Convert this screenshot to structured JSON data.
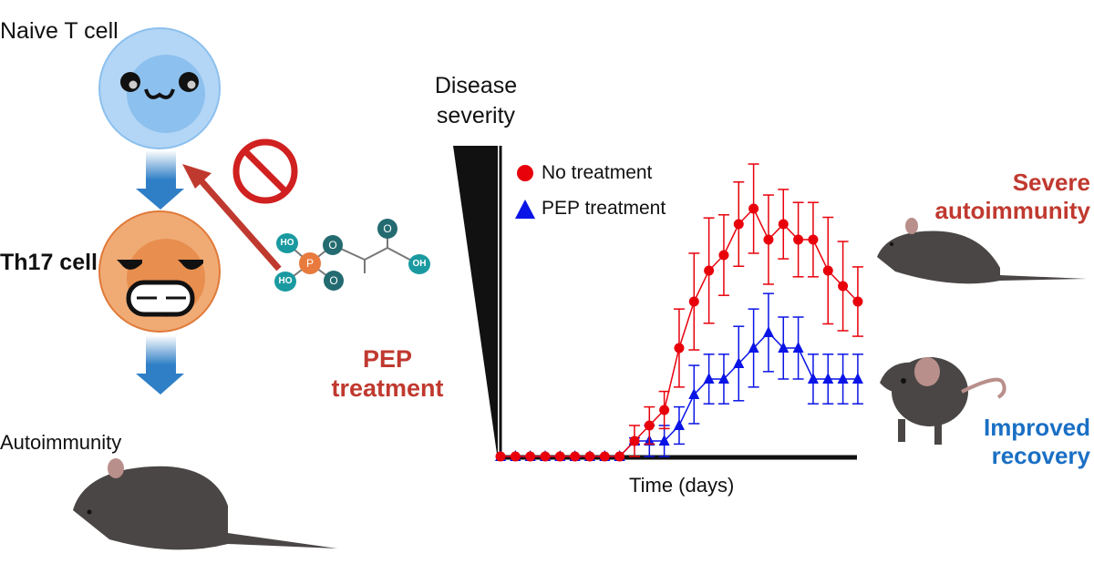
{
  "left": {
    "naive_label": "Naive T cell",
    "th17_label": "Th17 cell",
    "autoimmunity_label": "Autoimmunity",
    "pep_label_line1": "PEP",
    "pep_label_line2": "treatment",
    "molecule_atoms": [
      "HO",
      "HO",
      "P",
      "O",
      "O",
      "O",
      "OH"
    ]
  },
  "right": {
    "severe_line1": "Severe",
    "severe_line2": "autoimmunity",
    "improved_line1": "Improved",
    "improved_line2": "recovery"
  },
  "colors": {
    "red_series": "#e8000b",
    "blue_series": "#0a14e6",
    "pep_red": "#c0392f",
    "recovery_blue": "#1a6fc4",
    "arrow_blue": "#2f7fc6"
  },
  "chart_data": {
    "type": "line",
    "ylabel": "Disease severity",
    "xlabel": "Time (days)",
    "legend_placement": "top-left",
    "grid": false,
    "x": [
      1,
      2,
      3,
      4,
      5,
      6,
      7,
      8,
      9,
      10,
      11,
      12,
      13,
      14,
      15,
      16,
      17,
      18,
      19,
      20,
      21,
      22,
      23,
      24,
      25
    ],
    "ylim": [
      0,
      4.7
    ],
    "series": [
      {
        "name": "No treatment",
        "marker": "circle",
        "color": "#e8000b",
        "values": [
          0,
          0,
          0,
          0,
          0,
          0,
          0,
          0,
          0,
          0.25,
          0.5,
          0.75,
          1.75,
          2.5,
          3,
          3.25,
          3.75,
          4,
          3.5,
          3.75,
          3.5,
          3.5,
          3,
          2.75,
          2.5
        ],
        "error": [
          0,
          0,
          0,
          0,
          0,
          0,
          0,
          0,
          0,
          0.25,
          0.3,
          0.3,
          0.63,
          0.78,
          0.85,
          0.65,
          0.68,
          0.72,
          0.72,
          0.56,
          0.6,
          0.6,
          0.86,
          0.72,
          0.56
        ]
      },
      {
        "name": "PEP treatment",
        "marker": "triangle",
        "color": "#0a14e6",
        "values": [
          0,
          0,
          0,
          0,
          0,
          0,
          0,
          0,
          0,
          0.25,
          0.25,
          0.25,
          0.5,
          1,
          1.25,
          1.25,
          1.5,
          1.75,
          2,
          1.75,
          1.75,
          1.25,
          1.25,
          1.25,
          1.25
        ],
        "error": [
          0,
          0,
          0,
          0,
          0,
          0,
          0,
          0,
          0,
          0.05,
          0.25,
          0.25,
          0.3,
          0.47,
          0.4,
          0.4,
          0.6,
          0.63,
          0.63,
          0.5,
          0.5,
          0.4,
          0.4,
          0.4,
          0.4
        ]
      }
    ]
  }
}
